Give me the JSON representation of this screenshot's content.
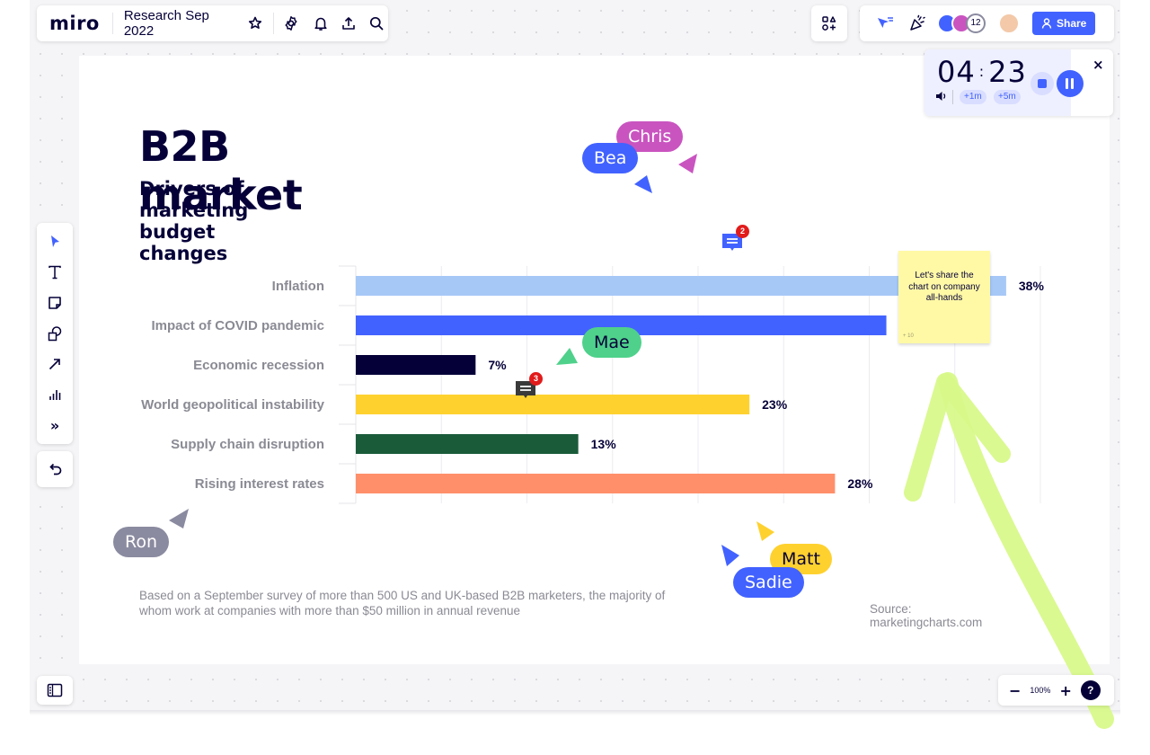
{
  "app": {
    "logo": "miro",
    "board_name": "Research Sep 2022"
  },
  "header_icons": [
    "star-icon",
    "settings-icon",
    "bell-icon",
    "upload-icon",
    "search-icon"
  ],
  "right_bar": {
    "collaborators_count": "12",
    "share_label": "Share"
  },
  "timer": {
    "minutes": "04",
    "separator": ":",
    "seconds": "23",
    "add_1m": "+1m",
    "add_5m": "+5m",
    "close": "×"
  },
  "toolbar": {
    "more": "»"
  },
  "frame": {
    "title": "B2B market",
    "subtitle": "Drivers of marketing budget changes",
    "footnote": "Based on a September survey of more than 500 US and UK-based B2B marketers, the majority of whom work at companies with more than $50 million in annual revenue",
    "source": "Source: marketingcharts.com"
  },
  "chart_data": {
    "type": "bar",
    "orientation": "horizontal",
    "categories": [
      "Inflation",
      "Impact of COVID pandemic",
      "Economic recession",
      "World geopolitical instability",
      "Supply chain disruption",
      "Rising interest rates"
    ],
    "values": [
      38,
      31,
      7,
      23,
      13,
      28
    ],
    "labels": [
      "38%",
      "",
      "7%",
      "23%",
      "13%",
      "28%"
    ],
    "colors": [
      "#a6c8f7",
      "#4262ff",
      "#050038",
      "#fed12f",
      "#1a5b3a",
      "#ff8f6b"
    ],
    "xlim": [
      0,
      40
    ],
    "grid": true
  },
  "cursors": [
    {
      "name": "Chris",
      "color": "#c954c0"
    },
    {
      "name": "Bea",
      "color": "#4262ff"
    },
    {
      "name": "Mae",
      "color": "#4fd18b"
    },
    {
      "name": "Ron",
      "color": "#8a8aa0"
    },
    {
      "name": "Matt",
      "color": "#fed12f"
    },
    {
      "name": "Sadie",
      "color": "#4262ff"
    }
  ],
  "sticky": {
    "text": "Let's share the chart on company all-hands",
    "count": "+ 10"
  },
  "comments": [
    {
      "count": "2"
    },
    {
      "count": "3"
    }
  ],
  "zoom": {
    "level": "100%",
    "minus": "−",
    "plus": "+",
    "help": "?"
  }
}
